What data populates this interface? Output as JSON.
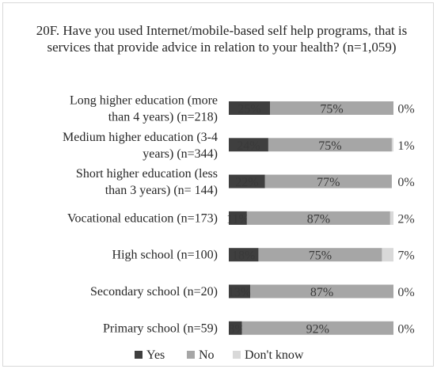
{
  "chart_data": {
    "type": "bar",
    "orientation": "horizontal",
    "stacked": "100%",
    "title": "20F. Have you used Internet/mobile-based self help programs, that is services that provide advice in relation to your health? (n=1,059)",
    "categories": [
      [
        "Long higher education (more",
        "than 4 years) (n=218)"
      ],
      [
        "Medium higher education (3-4",
        "years) (n=344)"
      ],
      [
        "Short higher education (less",
        "than 3 years) (n= 144)"
      ],
      [
        "Vocational education (n=173)"
      ],
      [
        "High school (n=100)"
      ],
      [
        "Secondary school (n=20)"
      ],
      [
        "Primary school (n=59)"
      ]
    ],
    "series": [
      {
        "name": "Yes",
        "color": "#3f3f3f",
        "values": [
          25,
          24,
          22,
          11,
          18,
          13,
          8
        ],
        "labels": [
          "25%",
          "24%",
          "22%",
          "11%",
          "18%",
          "13%",
          "8%"
        ]
      },
      {
        "name": "No",
        "color": "#a6a6a6",
        "values": [
          75,
          75,
          77,
          87,
          75,
          87,
          92
        ],
        "labels": [
          "75%",
          "75%",
          "77%",
          "87%",
          "75%",
          "87%",
          "92%"
        ]
      },
      {
        "name": "Don't know",
        "color": "#d9d9d9",
        "values": [
          0,
          1,
          0,
          2,
          7,
          0,
          0
        ],
        "labels": [
          "0%",
          "1%",
          "0%",
          "2%",
          "7%",
          "0%",
          "0%"
        ]
      }
    ],
    "xlim": [
      0,
      100
    ],
    "grid": false,
    "legend_position": "bottom"
  }
}
